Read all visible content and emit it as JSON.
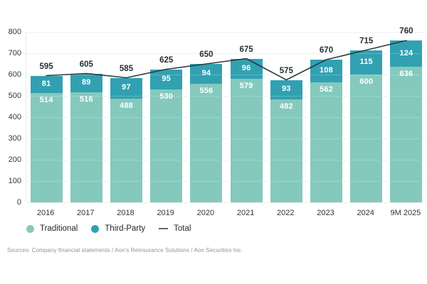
{
  "chart_data": {
    "type": "bar",
    "subtype": "stacked-bars-with-total-line",
    "categories": [
      "2016",
      "2017",
      "2018",
      "2019",
      "2020",
      "2021",
      "2022",
      "2023",
      "2024",
      "9M 2025"
    ],
    "series": [
      {
        "name": "Traditional",
        "values": [
          514,
          516,
          488,
          530,
          556,
          579,
          482,
          562,
          600,
          636
        ],
        "color": "#85c9bd"
      },
      {
        "name": "Third-Party",
        "values": [
          81,
          89,
          97,
          95,
          94,
          96,
          93,
          108,
          115,
          124
        ],
        "color": "#31a1b2"
      }
    ],
    "line_series": {
      "name": "Total",
      "values": [
        595,
        605,
        585,
        625,
        650,
        675,
        575,
        670,
        715,
        760
      ],
      "color": "#2e3a40"
    },
    "title": "",
    "xlabel": "",
    "ylabel": "",
    "ylim": [
      0,
      800
    ],
    "yticks": [
      0,
      100,
      200,
      300,
      400,
      500,
      600,
      700,
      800
    ],
    "grid": true,
    "value_labels": "inside-segments-and-above-total",
    "legend_position": "bottom-left"
  },
  "legend": {
    "items": [
      {
        "label": "Traditional",
        "swatch": "circle",
        "color": "#85c9bd"
      },
      {
        "label": "Third-Party",
        "swatch": "circle",
        "color": "#31a1b2"
      },
      {
        "label": "Total",
        "swatch": "dash",
        "color": "#5e6b76"
      }
    ]
  },
  "footer": {
    "sources": "Sources: Company financial statements / Aon's Reinsurance Solutions / Aon Securities Inc."
  },
  "colors": {
    "background": "#ffffff",
    "gridline": "#e9eceb",
    "axis_text": "#30373b",
    "total_label_text": "#272e32",
    "segment_label_text": "#ffffff",
    "sources_text": "#8b959c"
  }
}
